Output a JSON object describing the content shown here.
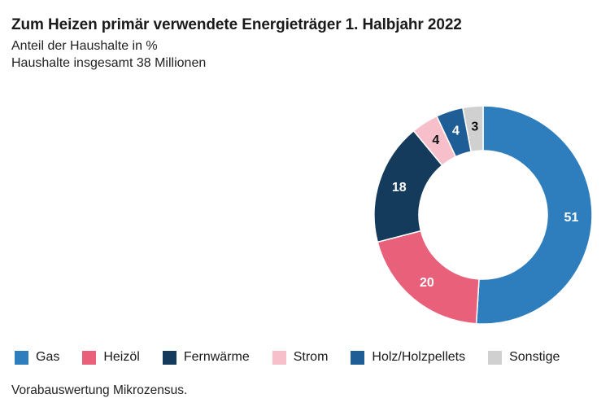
{
  "header": {
    "title": "Zum Heizen primär verwendete Energieträger 1. Halbjahr 2022",
    "subtitle_1": "Anteil der Haushalte in %",
    "subtitle_2": "Haushalte insgesamt 38 Millionen"
  },
  "chart_data": {
    "type": "pie",
    "title": "Zum Heizen primär verwendete Energieträger 1. Halbjahr 2022",
    "unit": "%",
    "donut": true,
    "slices": [
      {
        "name": "Gas",
        "value": 51,
        "color": "#2e7ebe",
        "label_color": "#ffffff"
      },
      {
        "name": "Heizöl",
        "value": 20,
        "color": "#e8607a",
        "label_color": "#ffffff"
      },
      {
        "name": "Fernwärme",
        "value": 18,
        "color": "#143a5c",
        "label_color": "#ffffff"
      },
      {
        "name": "Strom",
        "value": 4,
        "color": "#f6bfca",
        "label_color": "#111111"
      },
      {
        "name": "Holz/Holzpellets",
        "value": 4,
        "color": "#1f5d96",
        "label_color": "#ffffff"
      },
      {
        "name": "Sonstige",
        "value": 3,
        "color": "#d0d0d0",
        "label_color": "#111111"
      }
    ],
    "legend_position": "bottom"
  },
  "footnote": "Vorabauswertung Mikrozensus."
}
